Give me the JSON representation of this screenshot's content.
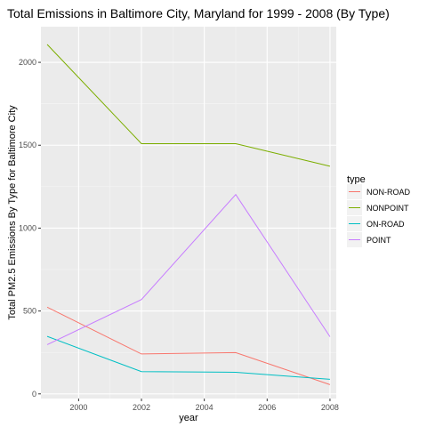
{
  "chart_data": {
    "type": "line",
    "title": "Total Emissions in Baltimore City, Maryland for 1999 - 2008 (By Type)",
    "xlabel": "year",
    "ylabel": "Total PM2.5 Emissions By Type for Baltimore City",
    "x": [
      1999,
      2002,
      2005,
      2008
    ],
    "xlim": [
      1998.8,
      2008.2
    ],
    "ylim": [
      -28,
      2215
    ],
    "x_ticks": [
      2000,
      2002,
      2004,
      2006,
      2008
    ],
    "x_tick_labels": [
      "2000",
      "2002",
      "2004",
      "2006",
      "2008"
    ],
    "y_ticks": [
      0,
      500,
      1000,
      1500,
      2000
    ],
    "y_tick_labels": [
      "0",
      "500",
      "1000",
      "1500",
      "2000"
    ],
    "grid": true,
    "legend": {
      "title": "type",
      "placement": "right"
    },
    "series": [
      {
        "name": "NON-ROAD",
        "color": "#F8766D",
        "values": [
          522.9,
          240.8,
          248.9,
          55.8
        ]
      },
      {
        "name": "NONPOINT",
        "color": "#7CAE00",
        "values": [
          2107.6,
          1509.5,
          1509.5,
          1373.2
        ]
      },
      {
        "name": "ON-ROAD",
        "color": "#00BFC4",
        "values": [
          346.8,
          134.3,
          130.4,
          88.3
        ]
      },
      {
        "name": "POINT",
        "color": "#C77CFF",
        "values": [
          296.8,
          569.3,
          1202.5,
          344.98
        ]
      }
    ]
  }
}
